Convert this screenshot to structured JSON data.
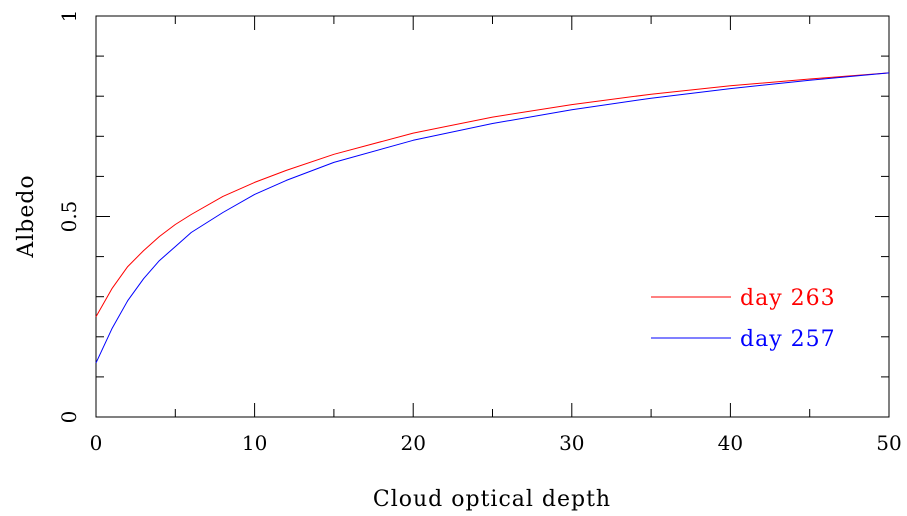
{
  "chart_data": {
    "type": "line",
    "title": "",
    "xlabel": "Cloud optical depth",
    "ylabel": "Albedo",
    "xlim": [
      0,
      50
    ],
    "ylim": [
      0,
      1
    ],
    "x_ticks": [
      "0",
      "10",
      "20",
      "30",
      "40",
      "50"
    ],
    "y_ticks": [
      "0",
      "0.5",
      "1"
    ],
    "x_tick_values": [
      0,
      10,
      20,
      30,
      40,
      50
    ],
    "y_tick_values": [
      0,
      0.5,
      1
    ],
    "grid": false,
    "legend_position": "lower-right",
    "series": [
      {
        "name": "day 263",
        "color": "#ff0000",
        "x": [
          0,
          1,
          2,
          3,
          4,
          5,
          6,
          8,
          10,
          12,
          15,
          20,
          25,
          30,
          35,
          40,
          45,
          50
        ],
        "y": [
          0.25,
          0.32,
          0.375,
          0.415,
          0.45,
          0.48,
          0.505,
          0.55,
          0.585,
          0.615,
          0.655,
          0.708,
          0.748,
          0.779,
          0.805,
          0.826,
          0.843,
          0.858
        ]
      },
      {
        "name": "day 257",
        "color": "#0000ff",
        "x": [
          0,
          1,
          2,
          3,
          4,
          5,
          6,
          8,
          10,
          12,
          15,
          20,
          25,
          30,
          35,
          40,
          45,
          50
        ],
        "y": [
          0.135,
          0.22,
          0.29,
          0.345,
          0.39,
          0.425,
          0.46,
          0.51,
          0.555,
          0.59,
          0.635,
          0.69,
          0.732,
          0.766,
          0.795,
          0.819,
          0.84,
          0.858
        ]
      }
    ]
  }
}
